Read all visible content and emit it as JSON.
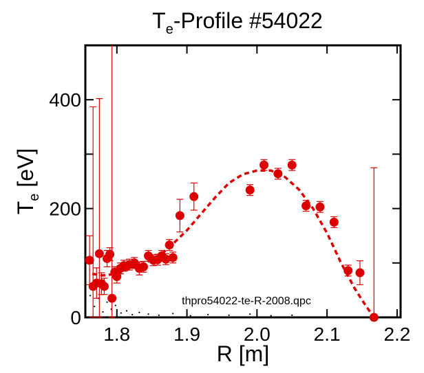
{
  "chart_data": {
    "type": "scatter",
    "title_main": "T",
    "title_sub": "e",
    "title_rest": "-Profile #54022",
    "xlabel": "R [m]",
    "ylabel_main": "T",
    "ylabel_sub": "e",
    "ylabel_rest": " [eV]",
    "xlim": [
      1.755,
      2.205
    ],
    "ylim": [
      0,
      500
    ],
    "xticks": [
      1.8,
      1.9,
      2.0,
      2.1,
      2.2
    ],
    "xtick_labels": [
      "1.8",
      "1.9",
      "2.0",
      "2.1",
      "2.2"
    ],
    "yticks_labeled": [
      0,
      200,
      400
    ],
    "ytick_labels": [
      "0",
      "200",
      "400"
    ],
    "yticks_minor": [
      100,
      300
    ],
    "annotation": "thpro54022-te-R-2008.qpc",
    "colors": {
      "data": "#dd0000",
      "axes": "#000000"
    },
    "grid": false,
    "series": [
      {
        "kind": "points-with-errorbars",
        "points": [
          {
            "x": 1.761,
            "y": 105,
            "err": 45
          },
          {
            "x": 1.766,
            "y": 57,
            "err": 330
          },
          {
            "x": 1.771,
            "y": 63,
            "err": 28
          },
          {
            "x": 1.775,
            "y": 117,
            "err": 285
          },
          {
            "x": 1.778,
            "y": 62,
            "err": 20
          },
          {
            "x": 1.782,
            "y": 57,
            "err": 15
          },
          {
            "x": 1.786,
            "y": 108,
            "err": 15
          },
          {
            "x": 1.79,
            "y": 116,
            "err": 12
          },
          {
            "x": 1.793,
            "y": 35,
            "err": 500
          },
          {
            "x": 1.797,
            "y": 83,
            "err": 10
          },
          {
            "x": 1.8,
            "y": 75,
            "err": 12
          },
          {
            "x": 1.805,
            "y": 90,
            "err": 10
          },
          {
            "x": 1.81,
            "y": 95,
            "err": 10
          },
          {
            "x": 1.818,
            "y": 97,
            "err": 10
          },
          {
            "x": 1.825,
            "y": 100,
            "err": 10
          },
          {
            "x": 1.832,
            "y": 90,
            "err": 12
          },
          {
            "x": 1.838,
            "y": 93,
            "err": 10
          },
          {
            "x": 1.845,
            "y": 113,
            "err": 10
          },
          {
            "x": 1.852,
            "y": 105,
            "err": 10
          },
          {
            "x": 1.858,
            "y": 106,
            "err": 10
          },
          {
            "x": 1.864,
            "y": 113,
            "err": 10
          },
          {
            "x": 1.87,
            "y": 107,
            "err": 10
          },
          {
            "x": 1.875,
            "y": 133,
            "err": 10
          },
          {
            "x": 1.88,
            "y": 110,
            "err": 10
          },
          {
            "x": 1.89,
            "y": 187,
            "err": 30
          },
          {
            "x": 1.91,
            "y": 222,
            "err": 25
          },
          {
            "x": 1.99,
            "y": 234,
            "err": 10
          },
          {
            "x": 2.01,
            "y": 280,
            "err": 10
          },
          {
            "x": 2.03,
            "y": 264,
            "err": 10
          },
          {
            "x": 2.05,
            "y": 280,
            "err": 10
          },
          {
            "x": 2.07,
            "y": 205,
            "err": 10
          },
          {
            "x": 2.09,
            "y": 203,
            "err": 10
          },
          {
            "x": 2.11,
            "y": 175,
            "err": 10
          },
          {
            "x": 2.13,
            "y": 86,
            "err": 10
          },
          {
            "x": 2.147,
            "y": 82,
            "err": 22
          },
          {
            "x": 2.167,
            "y": 0,
            "err": 275
          }
        ]
      },
      {
        "kind": "fit",
        "style": "dashed",
        "x": [
          1.765,
          1.78,
          1.8,
          1.82,
          1.84,
          1.86,
          1.88,
          1.9,
          1.92,
          1.94,
          1.96,
          1.98,
          2.0,
          2.02,
          2.04,
          2.06,
          2.08,
          2.1,
          2.12,
          2.14,
          2.155,
          2.167
        ],
        "y": [
          80,
          77,
          80,
          90,
          100,
          112,
          135,
          160,
          190,
          220,
          247,
          263,
          270,
          270,
          258,
          235,
          200,
          155,
          100,
          52,
          22,
          0
        ]
      },
      {
        "kind": "raw-scatter",
        "style": "dots",
        "x": [
          1.762,
          1.768,
          1.774,
          1.78,
          1.786,
          1.792,
          1.798,
          1.806,
          1.814,
          1.822,
          1.832,
          1.845,
          1.86,
          1.88,
          1.905,
          1.93,
          1.96,
          1.99,
          2.02,
          2.05
        ],
        "y": [
          40,
          20,
          35,
          10,
          28,
          15,
          22,
          8,
          12,
          5,
          9,
          6,
          4,
          7,
          3,
          5,
          4,
          6,
          3,
          4
        ]
      }
    ]
  }
}
